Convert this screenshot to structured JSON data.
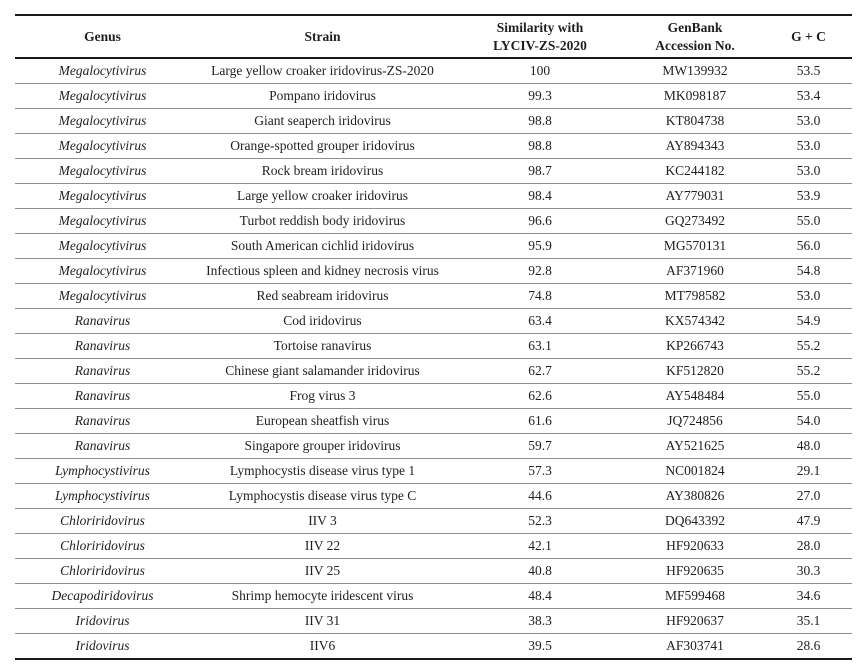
{
  "table": {
    "headers": [
      {
        "id": "genus",
        "label": "Genus"
      },
      {
        "id": "strain",
        "label": "Strain"
      },
      {
        "id": "similarity",
        "label": "Similarity with\nLYCIV-ZS-2020"
      },
      {
        "id": "accession",
        "label": "GenBank\nAccession No."
      },
      {
        "id": "gc",
        "label": "G + C"
      }
    ],
    "rows": [
      {
        "genus": "Megalocytivirus",
        "strain": "Large yellow croaker iridovirus-ZS-2020",
        "similarity": "100",
        "accession": "MW139932",
        "gc": "53.5"
      },
      {
        "genus": "Megalocytivirus",
        "strain": "Pompano iridovirus",
        "similarity": "99.3",
        "accession": "MK098187",
        "gc": "53.4"
      },
      {
        "genus": "Megalocytivirus",
        "strain": "Giant seaperch iridovirus",
        "similarity": "98.8",
        "accession": "KT804738",
        "gc": "53.0"
      },
      {
        "genus": "Megalocytivirus",
        "strain": "Orange-spotted grouper iridovirus",
        "similarity": "98.8",
        "accession": "AY894343",
        "gc": "53.0"
      },
      {
        "genus": "Megalocytivirus",
        "strain": "Rock bream iridovirus",
        "similarity": "98.7",
        "accession": "KC244182",
        "gc": "53.0"
      },
      {
        "genus": "Megalocytivirus",
        "strain": "Large yellow croaker iridovirus",
        "similarity": "98.4",
        "accession": "AY779031",
        "gc": "53.9"
      },
      {
        "genus": "Megalocytivirus",
        "strain": "Turbot reddish body iridovirus",
        "similarity": "96.6",
        "accession": "GQ273492",
        "gc": "55.0"
      },
      {
        "genus": "Megalocytivirus",
        "strain": "South American cichlid iridovirus",
        "similarity": "95.9",
        "accession": "MG570131",
        "gc": "56.0"
      },
      {
        "genus": "Megalocytivirus",
        "strain": "Infectious spleen and kidney necrosis virus",
        "similarity": "92.8",
        "accession": "AF371960",
        "gc": "54.8"
      },
      {
        "genus": "Megalocytivirus",
        "strain": "Red seabream iridovirus",
        "similarity": "74.8",
        "accession": "MT798582",
        "gc": "53.0"
      },
      {
        "genus": "Ranavirus",
        "strain": "Cod iridovirus",
        "similarity": "63.4",
        "accession": "KX574342",
        "gc": "54.9"
      },
      {
        "genus": "Ranavirus",
        "strain": "Tortoise ranavirus",
        "similarity": "63.1",
        "accession": "KP266743",
        "gc": "55.2"
      },
      {
        "genus": "Ranavirus",
        "strain": "Chinese giant salamander iridovirus",
        "similarity": "62.7",
        "accession": "KF512820",
        "gc": "55.2"
      },
      {
        "genus": "Ranavirus",
        "strain": "Frog virus 3",
        "similarity": "62.6",
        "accession": "AY548484",
        "gc": "55.0"
      },
      {
        "genus": "Ranavirus",
        "strain": "European sheatfish virus",
        "similarity": "61.6",
        "accession": "JQ724856",
        "gc": "54.0"
      },
      {
        "genus": "Ranavirus",
        "strain": "Singapore grouper iridovirus",
        "similarity": "59.7",
        "accession": "AY521625",
        "gc": "48.0"
      },
      {
        "genus": "Lymphocystivirus",
        "strain": "Lymphocystis disease virus type 1",
        "similarity": "57.3",
        "accession": "NC001824",
        "gc": "29.1"
      },
      {
        "genus": "Lymphocystivirus",
        "strain": "Lymphocystis disease virus type C",
        "similarity": "44.6",
        "accession": "AY380826",
        "gc": "27.0"
      },
      {
        "genus": "Chloriridovirus",
        "strain": "IIV 3",
        "similarity": "52.3",
        "accession": "DQ643392",
        "gc": "47.9"
      },
      {
        "genus": "Chloriridovirus",
        "strain": "IIV 22",
        "similarity": "42.1",
        "accession": "HF920633",
        "gc": "28.0"
      },
      {
        "genus": "Chloriridovirus",
        "strain": "IIV 25",
        "similarity": "40.8",
        "accession": "HF920635",
        "gc": "30.3"
      },
      {
        "genus": "Decapodiridovirus",
        "strain": "Shrimp hemocyte iridescent virus",
        "similarity": "48.4",
        "accession": "MF599468",
        "gc": "34.6"
      },
      {
        "genus": "Iridovirus",
        "strain": "IIV 31",
        "similarity": "38.3",
        "accession": "HF920637",
        "gc": "35.1"
      },
      {
        "genus": "Iridovirus",
        "strain": "IIV6",
        "similarity": "39.5",
        "accession": "AF303741",
        "gc": "28.6"
      }
    ]
  },
  "colors": {
    "background": "#ffffff",
    "text": "#1f1f1f",
    "thick_border": "#1a1a1a",
    "thin_border": "#8f8f8f"
  }
}
